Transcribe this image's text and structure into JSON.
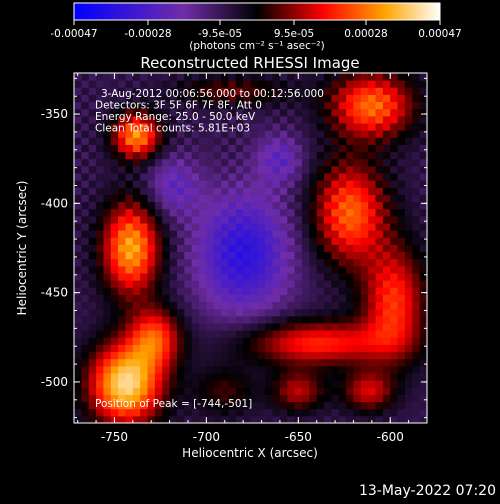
{
  "colorbar": {
    "tick_labels": [
      "-0.00047",
      "-0.00028",
      "-9.5e-05",
      "9.5e-05",
      "0.00028",
      "0.00047"
    ],
    "tick_values": [
      -0.00047,
      -0.00028,
      -9.5e-05,
      9.5e-05,
      0.00028,
      0.00047
    ],
    "units_label": "(photons cm⁻² s⁻¹ asec⁻²)",
    "range": [
      -0.00047,
      0.00047
    ]
  },
  "chart_data": {
    "type": "heatmap",
    "title": "Reconstructed RHESSI Image",
    "xlabel": "Heliocentric X (arcsec)",
    "ylabel": "Heliocentric Y (arcsec)",
    "xlim": [
      -772,
      -580
    ],
    "ylim": [
      -523,
      -327
    ],
    "x_tick_labels": [
      "-750",
      "-700",
      "-650",
      "-600"
    ],
    "x_ticks": [
      -750,
      -700,
      -650,
      -600
    ],
    "y_tick_labels": [
      "-350",
      "-400",
      "-450",
      "-500"
    ],
    "y_ticks": [
      -350,
      -400,
      -450,
      -500
    ],
    "colormap": "heat",
    "colormap_colors": [
      "#0000ff",
      "#6f2da8",
      "#000000",
      "#ff0000",
      "#ffa500",
      "#ffffff"
    ],
    "annotations": [
      "3-Aug-2012 00:06:56.000 to 00:12:56.000",
      "Detectors: 3F 5F 6F 7F 8F, Att 0",
      "Energy Range: 25.0 - 50.0 keV",
      "Clean    Total counts: 5.81E+03"
    ],
    "peak_label": "Position of Peak = [-744,-501]",
    "peak": [
      -744,
      -501
    ],
    "sources": [
      {
        "x": -744,
        "y": -501,
        "sx": 14,
        "sy": 16,
        "amp": 1.0
      },
      {
        "x": -741,
        "y": -425,
        "sx": 11,
        "sy": 18,
        "amp": 0.85
      },
      {
        "x": -738,
        "y": -362,
        "sx": 9,
        "sy": 9,
        "amp": 0.8
      },
      {
        "x": -728,
        "y": -475,
        "sx": 10,
        "sy": 12,
        "amp": 0.6
      },
      {
        "x": -610,
        "y": -345,
        "sx": 16,
        "sy": 13,
        "amp": 0.72
      },
      {
        "x": -622,
        "y": -405,
        "sx": 14,
        "sy": 20,
        "amp": 0.7
      },
      {
        "x": -598,
        "y": -455,
        "sx": 12,
        "sy": 22,
        "amp": 0.6
      },
      {
        "x": -640,
        "y": -478,
        "sx": 28,
        "sy": 9,
        "amp": 0.58
      },
      {
        "x": -650,
        "y": -505,
        "sx": 10,
        "sy": 8,
        "amp": 0.42
      },
      {
        "x": -612,
        "y": -505,
        "sx": 10,
        "sy": 8,
        "amp": 0.45
      },
      {
        "x": -686,
        "y": -337,
        "sx": 22,
        "sy": 6,
        "amp": 0.3
      },
      {
        "x": -690,
        "y": -505,
        "sx": 12,
        "sy": 10,
        "amp": 0.25
      }
    ],
    "negative_regions": [
      {
        "x": -680,
        "y": -428,
        "sx": 18,
        "sy": 24,
        "amp": 0.55
      },
      {
        "x": -718,
        "y": -390,
        "sx": 10,
        "sy": 12,
        "amp": 0.3
      },
      {
        "x": -660,
        "y": -375,
        "sx": 9,
        "sy": 10,
        "amp": 0.3
      }
    ]
  },
  "footer": {
    "date": "13-May-2022 07:20"
  }
}
